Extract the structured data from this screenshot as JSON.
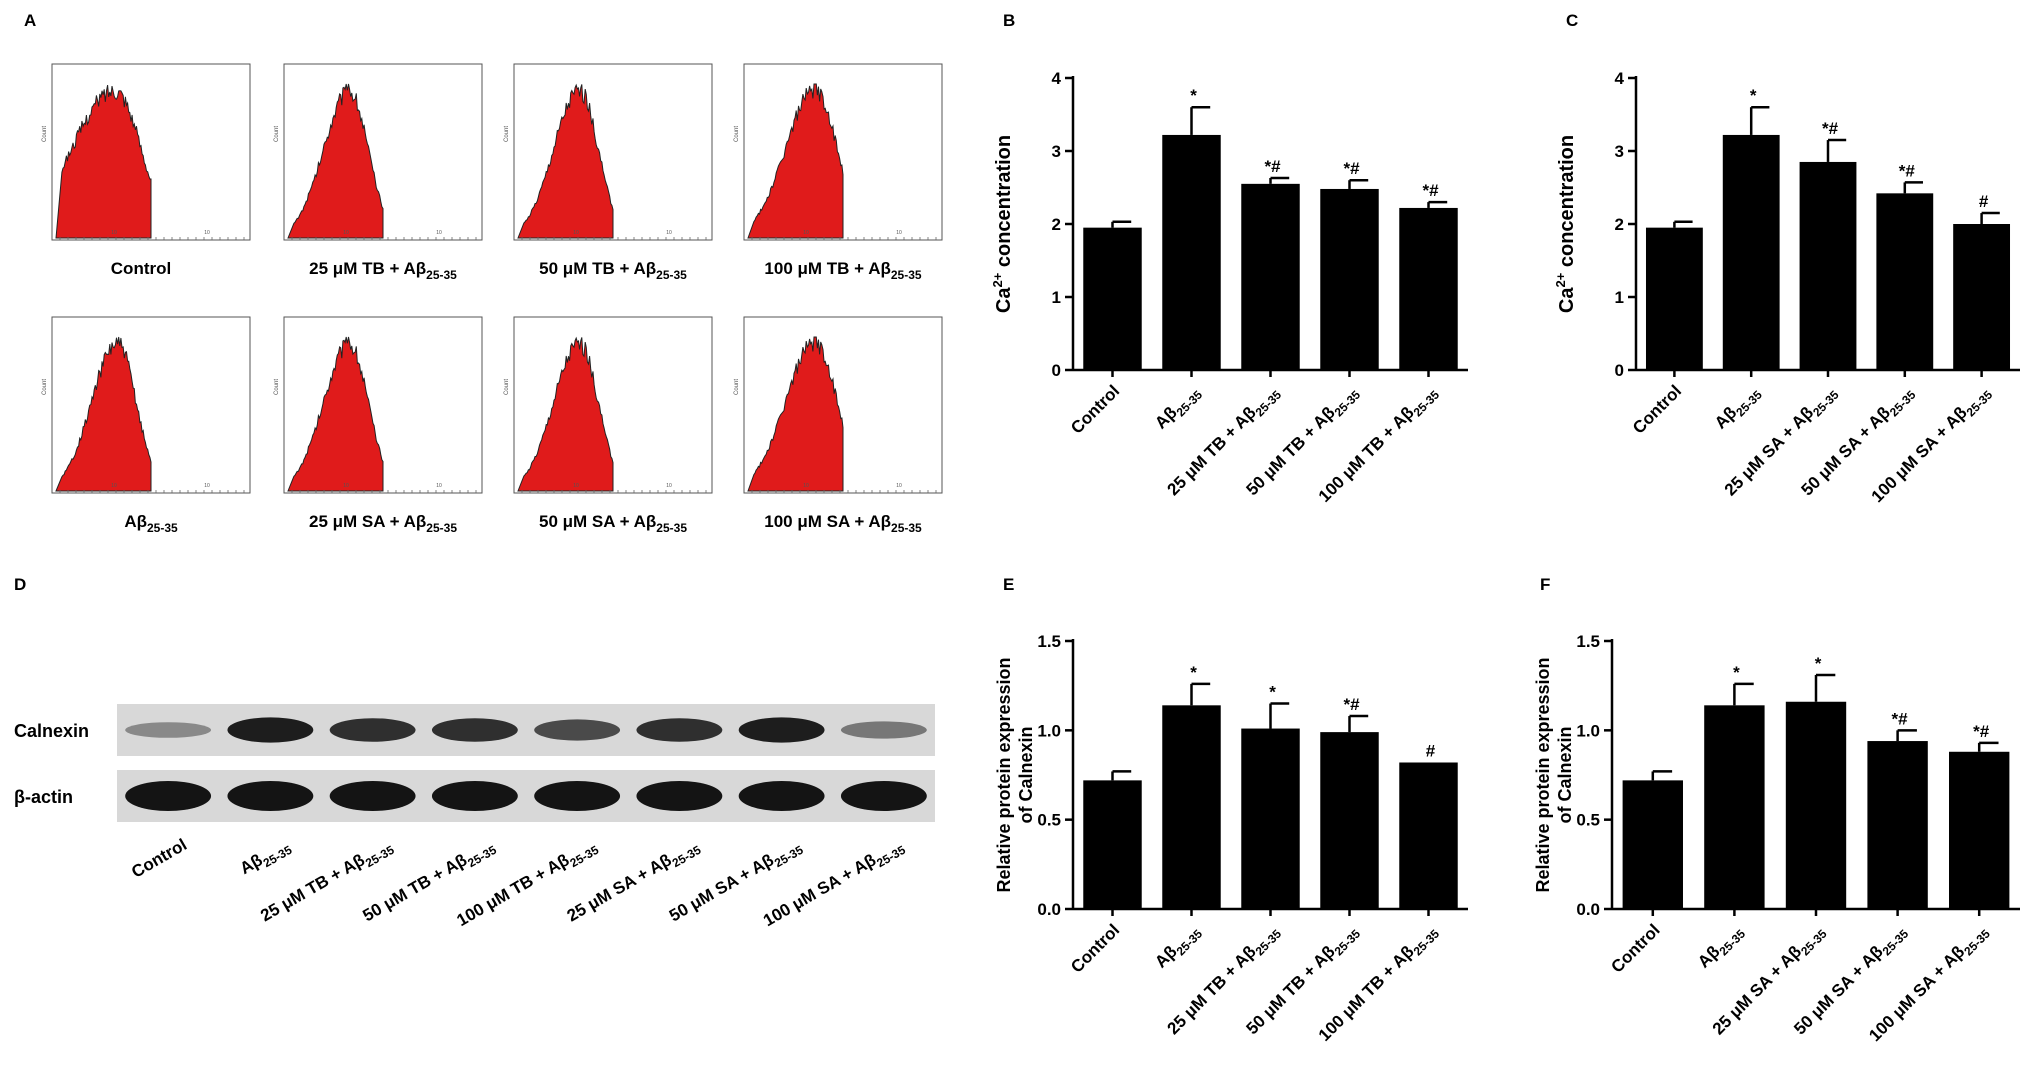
{
  "colors": {
    "bar": "#000000",
    "histogram": "#e01b1b",
    "axis": "#000000"
  },
  "panel_labels": {
    "a": "A",
    "b": "B",
    "c": "C",
    "d": "D",
    "e": "E",
    "f": "F"
  },
  "histograms": {
    "y_label": "Count",
    "x_tick_label": "10",
    "items": [
      {
        "label": "Control",
        "sub": "",
        "shape": "broad-left"
      },
      {
        "label": "25 μM TB + Aβ",
        "sub": "25-35",
        "shape": "narrow"
      },
      {
        "label": "50 μM TB + Aβ",
        "sub": "25-35",
        "shape": "narrow"
      },
      {
        "label": "100 μM TB + Aβ",
        "sub": "25-35",
        "shape": "narrow-right"
      },
      {
        "label": "Aβ",
        "sub": "25-35",
        "shape": "narrow"
      },
      {
        "label": "25 μM SA + Aβ",
        "sub": "25-35",
        "shape": "narrow"
      },
      {
        "label": "50 μM SA + Aβ",
        "sub": "25-35",
        "shape": "narrow"
      },
      {
        "label": "100 μM SA + Aβ",
        "sub": "25-35",
        "shape": "narrow-right"
      }
    ]
  },
  "western": {
    "rows": [
      "Calnexin",
      "β-actin"
    ],
    "lanes": [
      {
        "label": "Control",
        "sub": ""
      },
      {
        "label": "Aβ",
        "sub": "25-35"
      },
      {
        "label": "25 μM TB + Aβ",
        "sub": "25-35"
      },
      {
        "label": "50 μM TB + Aβ",
        "sub": "25-35"
      },
      {
        "label": "100 μM TB + Aβ",
        "sub": "25-35"
      },
      {
        "label": "25 μM SA + Aβ",
        "sub": "25-35"
      },
      {
        "label": "50 μM SA + Aβ",
        "sub": "25-35"
      },
      {
        "label": "100 μM SA + Aβ",
        "sub": "25-35"
      }
    ],
    "calnexin_intensity": [
      0.35,
      0.95,
      0.85,
      0.85,
      0.7,
      0.85,
      0.95,
      0.45
    ],
    "actin_intensity": [
      1,
      1,
      1,
      1,
      1,
      1,
      1,
      1
    ]
  },
  "chart_data": [
    {
      "panel": "B",
      "type": "bar",
      "ylabel": "Ca2+ concentration",
      "ylabel_main": "Ca",
      "ylabel_sup": "2+",
      "ylabel_rest": " concentration",
      "ylim": [
        0,
        4
      ],
      "yticks": [
        "0",
        "1",
        "2",
        "3",
        "4"
      ],
      "categories": [
        {
          "label": "Control",
          "sub": ""
        },
        {
          "label": "Aβ",
          "sub": "25-35"
        },
        {
          "label": "25 μM TB + Aβ",
          "sub": "25-35"
        },
        {
          "label": "50 μM TB + Aβ",
          "sub": "25-35"
        },
        {
          "label": "100 μM TB + Aβ",
          "sub": "25-35"
        }
      ],
      "values": [
        1.95,
        3.22,
        2.55,
        2.48,
        2.22
      ],
      "errors": [
        0.08,
        0.38,
        0.08,
        0.12,
        0.08
      ],
      "annotations": [
        "",
        "*",
        "*#",
        "*#",
        "*#"
      ]
    },
    {
      "panel": "C",
      "type": "bar",
      "ylabel": "Ca2+ concentration",
      "ylabel_main": "Ca",
      "ylabel_sup": "2+",
      "ylabel_rest": " concentration",
      "ylim": [
        0,
        4
      ],
      "yticks": [
        "0",
        "1",
        "2",
        "3",
        "4"
      ],
      "categories": [
        {
          "label": "Control",
          "sub": ""
        },
        {
          "label": "Aβ",
          "sub": "25-35"
        },
        {
          "label": "25 μM SA + Aβ",
          "sub": "25-35"
        },
        {
          "label": "50 μM SA + Aβ",
          "sub": "25-35"
        },
        {
          "label": "100 μM SA + Aβ",
          "sub": "25-35"
        }
      ],
      "values": [
        1.95,
        3.22,
        2.85,
        2.42,
        2.0
      ],
      "errors": [
        0.08,
        0.38,
        0.3,
        0.15,
        0.15
      ],
      "annotations": [
        "",
        "*",
        "*#",
        "*#",
        "#"
      ]
    },
    {
      "panel": "E",
      "type": "bar",
      "ylabel_line1": "Relative protein expression",
      "ylabel_line2": "of Calnexin",
      "ylim": [
        0,
        1.5
      ],
      "yticks": [
        "0.0",
        "0.5",
        "1.0",
        "1.5"
      ],
      "categories": [
        {
          "label": "Control",
          "sub": ""
        },
        {
          "label": "Aβ",
          "sub": "25-35"
        },
        {
          "label": "25 μM TB + Aβ",
          "sub": "25-35"
        },
        {
          "label": "50 μM TB + Aβ",
          "sub": "25-35"
        },
        {
          "label": "100 μM TB + Aβ",
          "sub": "25-35"
        }
      ],
      "values": [
        0.72,
        1.14,
        1.01,
        0.99,
        0.82
      ],
      "errors": [
        0.05,
        0.12,
        0.14,
        0.09,
        0.0
      ],
      "annotations": [
        "",
        "*",
        "*",
        "*#",
        "#"
      ]
    },
    {
      "panel": "F",
      "type": "bar",
      "ylabel_line1": "Relative protein expression",
      "ylabel_line2": "of Calnexin",
      "ylim": [
        0,
        1.5
      ],
      "yticks": [
        "0.0",
        "0.5",
        "1.0",
        "1.5"
      ],
      "categories": [
        {
          "label": "Control",
          "sub": ""
        },
        {
          "label": "Aβ",
          "sub": "25-35"
        },
        {
          "label": "25 μM SA + Aβ",
          "sub": "25-35"
        },
        {
          "label": "50 μM SA + Aβ",
          "sub": "25-35"
        },
        {
          "label": "100 μM SA + Aβ",
          "sub": "25-35"
        }
      ],
      "values": [
        0.72,
        1.14,
        1.16,
        0.94,
        0.88
      ],
      "errors": [
        0.05,
        0.12,
        0.15,
        0.06,
        0.05
      ],
      "annotations": [
        "",
        "*",
        "*",
        "*#",
        "*#"
      ]
    }
  ]
}
